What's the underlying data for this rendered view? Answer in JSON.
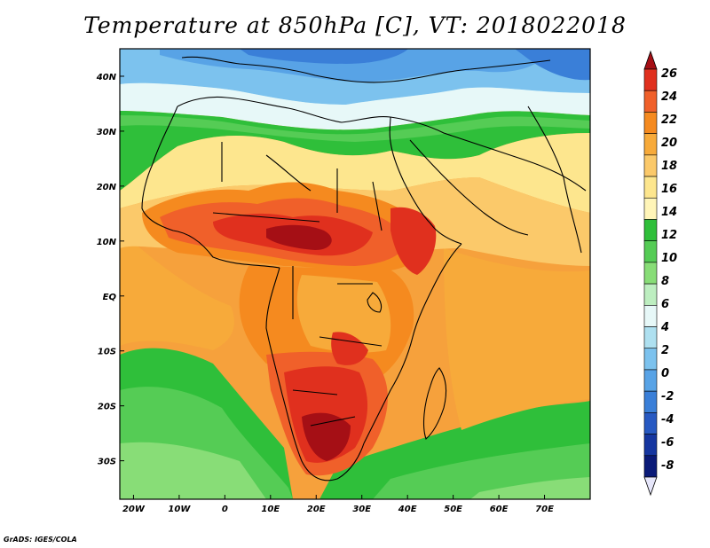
{
  "title": "Temperature at 850hPa [C], VT: 2018022018",
  "credit": "GrADS: IGES/COLA",
  "map": {
    "lon_range": [
      -23,
      80
    ],
    "lat_range": [
      -37,
      45
    ],
    "lon_ticks": [
      {
        "value": -20,
        "label": "20W"
      },
      {
        "value": -10,
        "label": "10W"
      },
      {
        "value": 0,
        "label": "0"
      },
      {
        "value": 10,
        "label": "10E"
      },
      {
        "value": 20,
        "label": "20E"
      },
      {
        "value": 30,
        "label": "30E"
      },
      {
        "value": 40,
        "label": "40E"
      },
      {
        "value": 50,
        "label": "50E"
      },
      {
        "value": 60,
        "label": "60E"
      },
      {
        "value": 70,
        "label": "70E"
      }
    ],
    "lat_ticks": [
      {
        "value": 40,
        "label": "40N"
      },
      {
        "value": 30,
        "label": "30N"
      },
      {
        "value": 20,
        "label": "20N"
      },
      {
        "value": 10,
        "label": "10N"
      },
      {
        "value": 0,
        "label": "EQ"
      },
      {
        "value": -10,
        "label": "10S"
      },
      {
        "value": -20,
        "label": "20S"
      },
      {
        "value": -30,
        "label": "30S"
      }
    ]
  },
  "colorbar": {
    "levels": [
      "26",
      "24",
      "22",
      "20",
      "18",
      "16",
      "14",
      "12",
      "10",
      "8",
      "6",
      "4",
      "2",
      "0",
      "-2",
      "-4",
      "-6",
      "-8"
    ],
    "colors": [
      "#a50f15",
      "#e0301e",
      "#f0602a",
      "#f58a1f",
      "#f7aa3a",
      "#fbc96a",
      "#fde68e",
      "#fff5b8",
      "#2fbf3a",
      "#55cc55",
      "#88dd77",
      "#bdeec0",
      "#e7f8f8",
      "#aee0f0",
      "#7cc2ee",
      "#58a3e6",
      "#3a7fd8",
      "#2759c2",
      "#1536a0",
      "#0a1a78",
      "#e6e6fa"
    ]
  }
}
